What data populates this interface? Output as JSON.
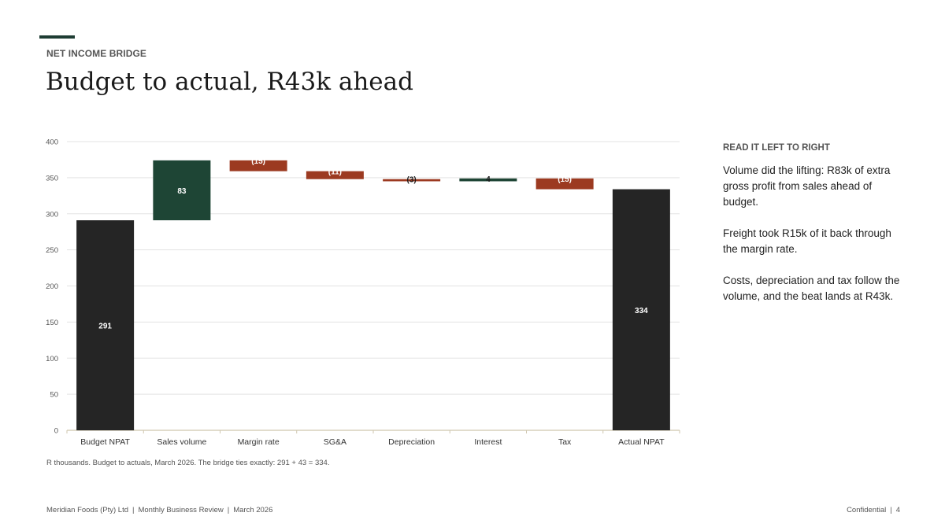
{
  "header": {
    "kicker": "NET INCOME BRIDGE",
    "title": "Budget to actual, R43k ahead"
  },
  "colors": {
    "total": "#252525",
    "increase": "#1e4535",
    "decrease": "#9c3a21",
    "accent": "#1e3d33"
  },
  "chart_data": {
    "type": "bar",
    "subtype": "waterfall",
    "categories": [
      "Budget NPAT",
      "Sales volume",
      "Margin rate",
      "SG&A",
      "Depreciation",
      "Interest",
      "Tax",
      "Actual NPAT"
    ],
    "values": [
      291,
      83,
      -15,
      -11,
      -3,
      4,
      -15,
      334
    ],
    "kinds": [
      "total",
      "increase",
      "decrease",
      "decrease",
      "decrease",
      "increase",
      "decrease",
      "total"
    ],
    "data_labels": [
      "291",
      "83",
      "(15)",
      "(11)",
      "(3)",
      "4",
      "(15)",
      "334"
    ],
    "ylim": [
      0,
      400
    ],
    "yticks": [
      "0",
      "50",
      "100",
      "150",
      "200",
      "250",
      "300",
      "350",
      "400"
    ],
    "grid": true,
    "legend": "none",
    "xlabel": "",
    "ylabel": ""
  },
  "notes": {
    "title": "READ IT LEFT TO RIGHT",
    "paragraphs": [
      "Volume did the lifting: R83k of extra gross profit from sales ahead of budget.",
      "Freight took R15k of it back through the margin rate.",
      "Costs, depreciation and tax follow the volume, and the beat lands at R43k."
    ]
  },
  "source": "R thousands. Budget to actuals, March 2026. The bridge ties exactly: 291 + 43 = 334.",
  "footer": {
    "company": "Meridian Foods (Pty) Ltd",
    "report": "Monthly Business Review",
    "date": "March 2026",
    "confidential": "Confidential",
    "page": "4"
  }
}
